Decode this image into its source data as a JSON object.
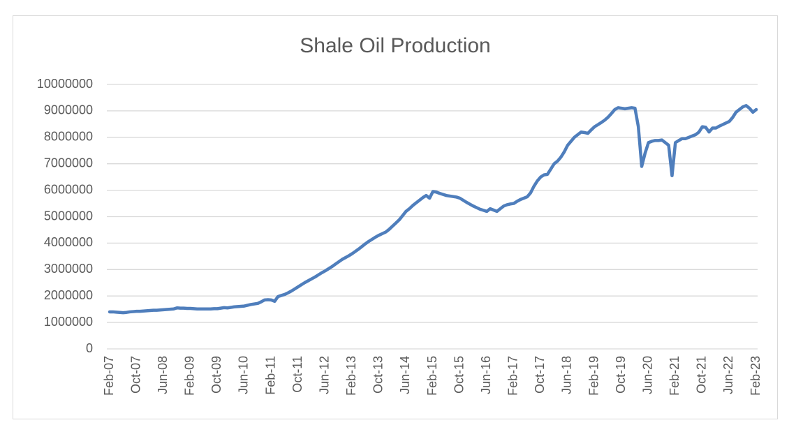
{
  "chart_data": {
    "type": "line",
    "title": "Shale Oil Production",
    "categories": [
      "Feb-07",
      null,
      null,
      null,
      null,
      null,
      null,
      null,
      "Oct-07",
      null,
      null,
      null,
      null,
      null,
      null,
      null,
      "Jun-08",
      null,
      null,
      null,
      null,
      null,
      null,
      null,
      "Feb-09",
      null,
      null,
      null,
      null,
      null,
      null,
      null,
      "Oct-09",
      null,
      null,
      null,
      null,
      null,
      null,
      null,
      "Jun-10",
      null,
      null,
      null,
      null,
      null,
      null,
      null,
      "Feb-11",
      null,
      null,
      null,
      null,
      null,
      null,
      null,
      "Oct-11",
      null,
      null,
      null,
      null,
      null,
      null,
      null,
      "Jun-12",
      null,
      null,
      null,
      null,
      null,
      null,
      null,
      "Feb-13",
      null,
      null,
      null,
      null,
      null,
      null,
      null,
      "Oct-13",
      null,
      null,
      null,
      null,
      null,
      null,
      null,
      "Jun-14",
      null,
      null,
      null,
      null,
      null,
      null,
      null,
      "Feb-15",
      null,
      null,
      null,
      null,
      null,
      null,
      null,
      "Oct-15",
      null,
      null,
      null,
      null,
      null,
      null,
      null,
      "Jun-16",
      null,
      null,
      null,
      null,
      null,
      null,
      null,
      "Feb-17",
      null,
      null,
      null,
      null,
      null,
      null,
      null,
      "Oct-17",
      null,
      null,
      null,
      null,
      null,
      null,
      null,
      "Jun-18",
      null,
      null,
      null,
      null,
      null,
      null,
      null,
      "Feb-19",
      null,
      null,
      null,
      null,
      null,
      null,
      null,
      "Oct-19",
      null,
      null,
      null,
      null,
      null,
      null,
      null,
      "Jun-20",
      null,
      null,
      null,
      null,
      null,
      null,
      null,
      "Feb-21",
      null,
      null,
      null,
      null,
      null,
      null,
      null,
      "Oct-21",
      null,
      null,
      null,
      null,
      null,
      null,
      null,
      "Jun-22",
      null,
      null,
      null,
      null,
      null,
      null,
      null,
      "Feb-23"
    ],
    "values": [
      1400000,
      1400000,
      1390000,
      1380000,
      1370000,
      1380000,
      1400000,
      1410000,
      1420000,
      1420000,
      1430000,
      1440000,
      1450000,
      1460000,
      1460000,
      1470000,
      1480000,
      1490000,
      1500000,
      1510000,
      1550000,
      1540000,
      1540000,
      1530000,
      1530000,
      1520000,
      1510000,
      1510000,
      1510000,
      1510000,
      1510000,
      1520000,
      1520000,
      1540000,
      1560000,
      1550000,
      1570000,
      1590000,
      1600000,
      1610000,
      1620000,
      1650000,
      1680000,
      1700000,
      1720000,
      1780000,
      1850000,
      1860000,
      1850000,
      1800000,
      1980000,
      2020000,
      2060000,
      2120000,
      2190000,
      2270000,
      2350000,
      2430000,
      2510000,
      2580000,
      2650000,
      2720000,
      2800000,
      2880000,
      2950000,
      3030000,
      3110000,
      3200000,
      3290000,
      3380000,
      3450000,
      3520000,
      3600000,
      3690000,
      3780000,
      3880000,
      3980000,
      4070000,
      4150000,
      4230000,
      4300000,
      4360000,
      4420000,
      4520000,
      4640000,
      4760000,
      4880000,
      5040000,
      5200000,
      5300000,
      5420000,
      5520000,
      5620000,
      5720000,
      5800000,
      5700000,
      5950000,
      5930000,
      5880000,
      5840000,
      5800000,
      5780000,
      5760000,
      5740000,
      5700000,
      5620000,
      5540000,
      5470000,
      5400000,
      5340000,
      5280000,
      5240000,
      5200000,
      5300000,
      5250000,
      5200000,
      5300000,
      5400000,
      5450000,
      5480000,
      5500000,
      5580000,
      5650000,
      5700000,
      5750000,
      5900000,
      6150000,
      6350000,
      6500000,
      6580000,
      6600000,
      6800000,
      7000000,
      7100000,
      7250000,
      7450000,
      7700000,
      7850000,
      8000000,
      8100000,
      8200000,
      8180000,
      8150000,
      8280000,
      8400000,
      8480000,
      8560000,
      8650000,
      8760000,
      8900000,
      9050000,
      9120000,
      9100000,
      9080000,
      9100000,
      9120000,
      9100000,
      8400000,
      6900000,
      7400000,
      7800000,
      7850000,
      7880000,
      7880000,
      7900000,
      7800000,
      7700000,
      6550000,
      7800000,
      7880000,
      7950000,
      7950000,
      8000000,
      8050000,
      8100000,
      8200000,
      8400000,
      8380000,
      8200000,
      8350000,
      8350000,
      8420000,
      8480000,
      8540000,
      8600000,
      8750000,
      8950000,
      9050000,
      9150000,
      9200000,
      9100000,
      8950000,
      9050000
    ],
    "color": "#4f7ebc",
    "ylim": [
      0,
      10000000
    ],
    "yticks": [
      0,
      1000000,
      2000000,
      3000000,
      4000000,
      5000000,
      6000000,
      7000000,
      8000000,
      9000000,
      10000000
    ],
    "grid": true
  }
}
